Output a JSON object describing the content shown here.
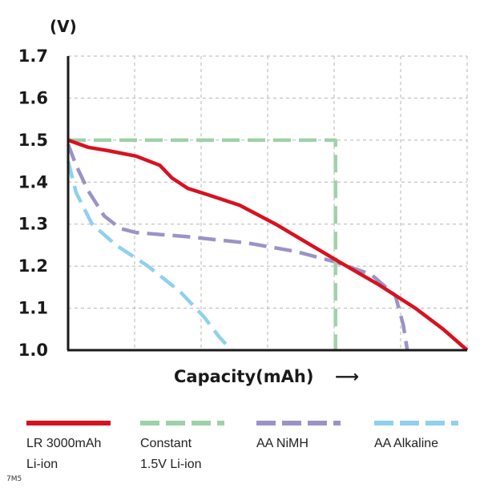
{
  "chart_data": {
    "type": "line",
    "unit_label": "(V)",
    "xlabel": "Capacity(mAh)",
    "x_arrow": "⟶",
    "yticks": [
      "1.7",
      "1.6",
      "1.5",
      "1.4",
      "1.3",
      "1.2",
      "1.1",
      "1.0"
    ],
    "ylim": [
      1.0,
      1.7
    ],
    "xlim": [
      0,
      100
    ],
    "grid": true,
    "legend_position": "bottom",
    "series": [
      {
        "name": "LR 3000mAh Li-ion",
        "legend_lines": [
          "LR 3000mAh",
          "Li-ion"
        ],
        "color": "#d7121f",
        "style": "solid",
        "points": [
          [
            0,
            1.5
          ],
          [
            5,
            1.483
          ],
          [
            10,
            1.475
          ],
          [
            17,
            1.462
          ],
          [
            23,
            1.44
          ],
          [
            26,
            1.41
          ],
          [
            30,
            1.385
          ],
          [
            35,
            1.37
          ],
          [
            43,
            1.345
          ],
          [
            52,
            1.3
          ],
          [
            60,
            1.255
          ],
          [
            68,
            1.21
          ],
          [
            78,
            1.155
          ],
          [
            87,
            1.1
          ],
          [
            94,
            1.05
          ],
          [
            100,
            1.0
          ]
        ]
      },
      {
        "name": "Constant 1.5V Li-ion",
        "legend_lines": [
          "Constant",
          "1.5V Li-ion"
        ],
        "color": "#9fd1a8",
        "style": "dashed",
        "points": [
          [
            0,
            1.5
          ],
          [
            67,
            1.5
          ],
          [
            67,
            1.0
          ]
        ]
      },
      {
        "name": "AA NiMH",
        "legend_lines": [
          "AA NiMH"
        ],
        "color": "#9b93c7",
        "style": "dashed",
        "points": [
          [
            0,
            1.49
          ],
          [
            2,
            1.44
          ],
          [
            5,
            1.38
          ],
          [
            9,
            1.32
          ],
          [
            13,
            1.29
          ],
          [
            17,
            1.28
          ],
          [
            30,
            1.27
          ],
          [
            45,
            1.255
          ],
          [
            57,
            1.235
          ],
          [
            67,
            1.21
          ],
          [
            76,
            1.18
          ],
          [
            82,
            1.13
          ],
          [
            84,
            1.06
          ],
          [
            85,
            1.0
          ]
        ]
      },
      {
        "name": "AA Alkaline",
        "legend_lines": [
          "AA Alkaline"
        ],
        "color": "#8fd0ee",
        "style": "dashed",
        "points": [
          [
            0,
            1.45
          ],
          [
            2,
            1.375
          ],
          [
            6,
            1.3
          ],
          [
            12,
            1.25
          ],
          [
            20,
            1.2
          ],
          [
            28,
            1.14
          ],
          [
            34,
            1.08
          ],
          [
            38,
            1.03
          ],
          [
            41,
            1.0
          ]
        ]
      }
    ]
  },
  "footer": {
    "watermark": "7M5"
  }
}
